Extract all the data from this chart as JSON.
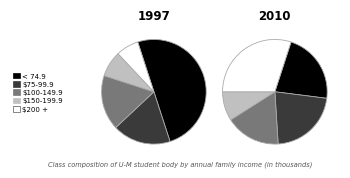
{
  "title_1997": "1997",
  "title_2010": "2010",
  "labels": [
    "< 74.9",
    "$75-99.9",
    "$100-149.9",
    "$150-199.9",
    "$200 +"
  ],
  "colors": [
    "#000000",
    "#3a3a3a",
    "#797979",
    "#c0c0c0",
    "#ffffff"
  ],
  "values_1997": [
    50,
    18,
    17,
    8,
    7
  ],
  "values_2010": [
    22,
    22,
    17,
    9,
    30
  ],
  "startangle_1997": 108,
  "startangle_2010": 72,
  "caption": "Class composition of U-M student body by annual family income (in thousands)",
  "background_color": "#ffffff",
  "legend_fontsize": 5.0,
  "title_fontsize": 8.5,
  "caption_fontsize": 4.8
}
